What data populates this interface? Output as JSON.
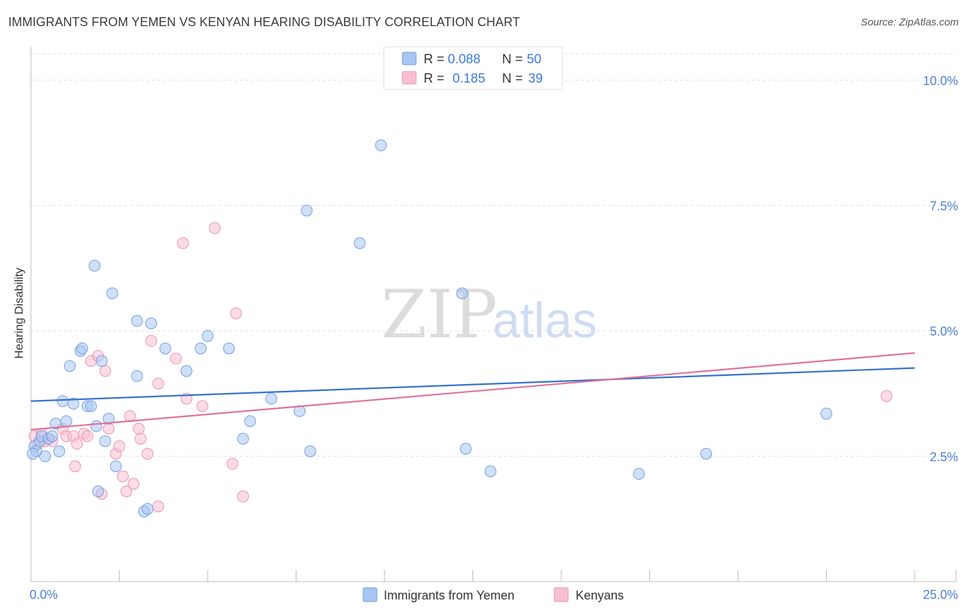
{
  "title": "IMMIGRANTS FROM YEMEN VS KENYAN HEARING DISABILITY CORRELATION CHART",
  "source": "Source: ZipAtlas.com",
  "watermark": {
    "zip": "ZIP",
    "atlas": "atlas"
  },
  "colors": {
    "yemen_fill": "#a9c6f2",
    "yemen_stroke": "#6f9fe0",
    "yemen_line": "#3471cc",
    "kenya_fill": "#f7bfd1",
    "kenya_stroke": "#e892b0",
    "kenya_line": "#e07099",
    "tick_label": "#4a7fd0",
    "grid": "#dddddd"
  },
  "legend": {
    "rows": [
      {
        "r_label": "R =",
        "r_value": "0.088",
        "n_label": "N =",
        "n_value": "50",
        "series": "yemen"
      },
      {
        "r_label": "R =",
        "r_value": "0.185",
        "n_label": "N =",
        "n_value": "39",
        "series": "kenya"
      }
    ]
  },
  "bottom_legend": [
    {
      "label": "Immigrants from Yemen",
      "series": "yemen"
    },
    {
      "label": "Kenyans",
      "series": "kenya"
    }
  ],
  "chart_data": {
    "type": "scatter",
    "title": "IMMIGRANTS FROM YEMEN VS KENYAN HEARING DISABILITY CORRELATION CHART",
    "xlabel": "",
    "ylabel": "Hearing Disability",
    "xlim": [
      0,
      25
    ],
    "ylim": [
      0,
      10.5
    ],
    "x_tick_labels": [
      {
        "value": 0,
        "label": "0.0%"
      },
      {
        "value": 25,
        "label": "25.0%"
      }
    ],
    "y_ticks": [
      {
        "value": 2.5,
        "label": "2.5%"
      },
      {
        "value": 5.0,
        "label": "5.0%"
      },
      {
        "value": 7.5,
        "label": "7.5%"
      },
      {
        "value": 10.0,
        "label": "10.0%"
      }
    ],
    "grid": "horizontal dashed",
    "series": [
      {
        "name": "Immigrants from Yemen",
        "key": "yemen",
        "trend": {
          "x": [
            0,
            25
          ],
          "y": [
            3.6,
            4.26
          ]
        },
        "points": [
          [
            0.1,
            2.7
          ],
          [
            0.15,
            2.6
          ],
          [
            0.25,
            2.8
          ],
          [
            0.3,
            2.9
          ],
          [
            0.4,
            2.5
          ],
          [
            0.5,
            2.85
          ],
          [
            0.6,
            2.9
          ],
          [
            0.7,
            3.15
          ],
          [
            0.8,
            2.6
          ],
          [
            0.9,
            3.6
          ],
          [
            1.0,
            3.2
          ],
          [
            1.1,
            4.3
          ],
          [
            1.2,
            3.55
          ],
          [
            1.4,
            4.6
          ],
          [
            1.45,
            4.65
          ],
          [
            1.6,
            3.5
          ],
          [
            1.7,
            3.5
          ],
          [
            1.8,
            6.3
          ],
          [
            1.85,
            3.1
          ],
          [
            1.9,
            1.8
          ],
          [
            2.0,
            4.4
          ],
          [
            2.1,
            2.8
          ],
          [
            2.2,
            3.25
          ],
          [
            2.3,
            5.75
          ],
          [
            2.4,
            2.3
          ],
          [
            3.0,
            4.1
          ],
          [
            3.0,
            5.2
          ],
          [
            3.2,
            1.4
          ],
          [
            3.3,
            1.45
          ],
          [
            3.4,
            5.15
          ],
          [
            3.8,
            4.65
          ],
          [
            4.4,
            4.2
          ],
          [
            4.8,
            4.65
          ],
          [
            5.0,
            4.9
          ],
          [
            5.6,
            4.65
          ],
          [
            6.0,
            2.85
          ],
          [
            6.2,
            3.2
          ],
          [
            6.8,
            3.65
          ],
          [
            7.6,
            3.4
          ],
          [
            7.8,
            7.4
          ],
          [
            7.9,
            2.6
          ],
          [
            9.3,
            6.75
          ],
          [
            9.9,
            8.7
          ],
          [
            12.2,
            5.75
          ],
          [
            12.3,
            2.65
          ],
          [
            13.0,
            2.2
          ],
          [
            17.2,
            2.15
          ],
          [
            19.1,
            2.55
          ],
          [
            22.5,
            3.35
          ],
          [
            0.05,
            2.55
          ]
        ]
      },
      {
        "name": "Kenyans",
        "key": "kenya",
        "trend": {
          "x": [
            0,
            25
          ],
          "y": [
            3.03,
            4.56
          ]
        },
        "points": [
          [
            0.1,
            2.9
          ],
          [
            0.2,
            2.75
          ],
          [
            0.3,
            2.95
          ],
          [
            0.4,
            2.8
          ],
          [
            0.5,
            2.85
          ],
          [
            0.6,
            2.8
          ],
          [
            0.9,
            3.05
          ],
          [
            1.0,
            2.9
          ],
          [
            1.2,
            2.9
          ],
          [
            1.25,
            2.3
          ],
          [
            1.3,
            2.75
          ],
          [
            1.5,
            2.95
          ],
          [
            1.6,
            2.9
          ],
          [
            1.7,
            4.4
          ],
          [
            1.9,
            4.5
          ],
          [
            2.0,
            1.75
          ],
          [
            2.1,
            4.2
          ],
          [
            2.2,
            3.05
          ],
          [
            2.4,
            2.55
          ],
          [
            2.5,
            2.7
          ],
          [
            2.6,
            2.1
          ],
          [
            2.7,
            1.8
          ],
          [
            2.8,
            3.3
          ],
          [
            2.9,
            1.95
          ],
          [
            3.05,
            3.05
          ],
          [
            3.1,
            2.85
          ],
          [
            3.3,
            2.55
          ],
          [
            3.4,
            4.8
          ],
          [
            3.6,
            1.5
          ],
          [
            3.6,
            3.95
          ],
          [
            4.1,
            4.45
          ],
          [
            4.3,
            6.75
          ],
          [
            4.4,
            3.65
          ],
          [
            4.85,
            3.5
          ],
          [
            5.2,
            7.05
          ],
          [
            5.7,
            2.35
          ],
          [
            5.8,
            5.35
          ],
          [
            6.0,
            1.7
          ],
          [
            24.2,
            3.7
          ]
        ]
      }
    ]
  }
}
